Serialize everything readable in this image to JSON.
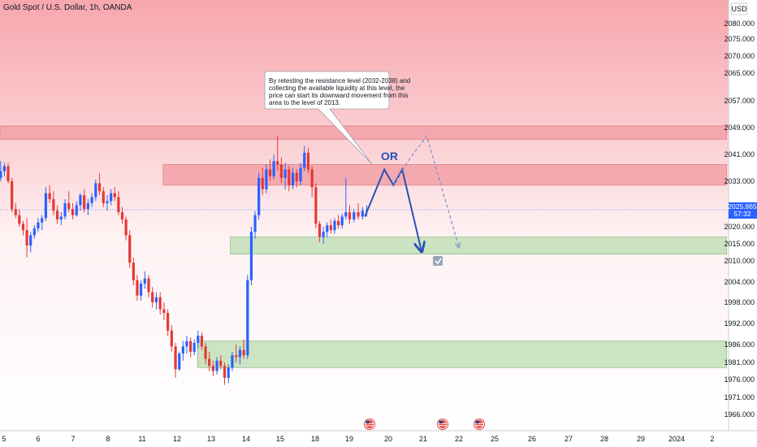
{
  "header": {
    "title": "Gold Spot / U.S. Dollar, 1h, OANDA",
    "currency": "USD"
  },
  "annotation": {
    "lines": [
      "By retesting the resistance level (2032-2038) and",
      "collecting the available liquidity at this level, the",
      "price can start its downward movement from this",
      "area to the level of 2013."
    ],
    "or_label": "OR"
  },
  "price_marker": {
    "price": "2025.865",
    "countdown": "57:32",
    "color": "#2962ff"
  },
  "colors": {
    "up": "#2962ff",
    "down": "#e53935",
    "resistance_zone": "#f4a1a8",
    "support_zone": "#c9e3c0",
    "scenario_line": "#2850b8",
    "upper_band": "#f6a3aa"
  },
  "icons": [
    "us-flag-icon",
    "us-flag-icon",
    "us-flag-icon",
    "checkmark-icon"
  ],
  "chart_data": {
    "type": "candlestick",
    "title": "Gold Spot / U.S. Dollar, 1h, OANDA",
    "ylim": [
      1964,
      2088
    ],
    "y_ticks": [
      2080,
      2075,
      2070,
      2065,
      2057,
      2049,
      2041,
      2033,
      2020,
      2015,
      2010,
      2004,
      1998,
      1992,
      1986,
      1981,
      1976,
      1971,
      1966
    ],
    "y_tick_labels": [
      "2080.000",
      "2075.000",
      "2070.000",
      "2065.000",
      "2057.000",
      "2049.000",
      "2041.000",
      "2033.000",
      "2020.000",
      "2015.000",
      "2010.000",
      "2004.000",
      "1998.000",
      "1992.000",
      "1986.000",
      "1981.000",
      "1976.000",
      "1971.000",
      "1966.000"
    ],
    "x_ticks": [
      {
        "label": "5",
        "x": 0
      },
      {
        "label": "6",
        "x": 1
      },
      {
        "label": "7",
        "x": 2
      },
      {
        "label": "8",
        "x": 3
      },
      {
        "label": "11",
        "x": 4
      },
      {
        "label": "12",
        "x": 5
      },
      {
        "label": "13",
        "x": 6
      },
      {
        "label": "14",
        "x": 7
      },
      {
        "label": "15",
        "x": 8
      },
      {
        "label": "18",
        "x": 9
      },
      {
        "label": "19",
        "x": 10
      },
      {
        "label": "20",
        "x": 11
      },
      {
        "label": "21",
        "x": 12
      },
      {
        "label": "22",
        "x": 13
      },
      {
        "label": "25",
        "x": 14
      },
      {
        "label": "26",
        "x": 15
      },
      {
        "label": "27",
        "x": 16
      },
      {
        "label": "28",
        "x": 17
      },
      {
        "label": "29",
        "x": 18
      },
      {
        "label": "2024",
        "x": 19
      },
      {
        "label": "2",
        "x": 20
      }
    ],
    "last_price": 2025.865,
    "zones": [
      {
        "kind": "resistance",
        "low": 2045.5,
        "high": 2049.5,
        "x_from": -0.1,
        "x_to": 20.4
      },
      {
        "kind": "resistance",
        "low": 2032,
        "high": 2038,
        "x_from": 4.6,
        "x_to": 20.4
      },
      {
        "kind": "support",
        "low": 2012,
        "high": 2017,
        "x_from": 6.55,
        "x_to": 20.4
      },
      {
        "kind": "support",
        "low": 1979.5,
        "high": 1987,
        "x_from": 5.6,
        "x_to": 20.4
      }
    ],
    "scenario_primary": [
      {
        "x": 10.4,
        "y": 2023.5
      },
      {
        "x": 10.9,
        "y": 2036.5
      },
      {
        "x": 11.15,
        "y": 2032
      },
      {
        "x": 11.4,
        "y": 2036.5
      },
      {
        "x": 11.95,
        "y": 2013
      }
    ],
    "scenario_alternative": [
      {
        "x": 11.15,
        "y": 2032
      },
      {
        "x": 11.6,
        "y": 2039.5
      },
      {
        "x": 12.1,
        "y": 2046.5
      },
      {
        "x": 13.0,
        "y": 2014
      }
    ],
    "candles_ohlc": [
      [
        2034.0,
        2039.0,
        2033.0,
        2036.0
      ],
      [
        2036.0,
        2038.5,
        2034.5,
        2037.5
      ],
      [
        2037.5,
        2038.5,
        2032.5,
        2033.0
      ],
      [
        2033.0,
        2034.0,
        2025.0,
        2026.0
      ],
      [
        2026.0,
        2027.5,
        2023.0,
        2024.0
      ],
      [
        2024.0,
        2026.0,
        2020.0,
        2021.0
      ],
      [
        2021.0,
        2022.0,
        2017.5,
        2019.0
      ],
      [
        2019.0,
        2023.0,
        2011.0,
        2014.5
      ],
      [
        2014.5,
        2018.5,
        2012.5,
        2017.5
      ],
      [
        2017.5,
        2020.5,
        2016.5,
        2019.5
      ],
      [
        2019.5,
        2023.0,
        2018.5,
        2021.5
      ],
      [
        2021.5,
        2024.0,
        2019.0,
        2023.0
      ],
      [
        2023.0,
        2031.5,
        2022.0,
        2030.0
      ],
      [
        2030.0,
        2032.0,
        2027.5,
        2028.5
      ],
      [
        2028.5,
        2030.5,
        2024.0,
        2025.5
      ],
      [
        2025.5,
        2027.0,
        2021.0,
        2022.5
      ],
      [
        2022.5,
        2025.0,
        2020.5,
        2023.5
      ],
      [
        2023.5,
        2028.5,
        2022.5,
        2027.5
      ],
      [
        2027.5,
        2030.5,
        2025.0,
        2026.0
      ],
      [
        2026.0,
        2027.5,
        2022.5,
        2024.0
      ],
      [
        2024.0,
        2028.0,
        2023.5,
        2027.0
      ],
      [
        2027.0,
        2030.0,
        2025.5,
        2029.5
      ],
      [
        2029.5,
        2031.0,
        2025.0,
        2026.0
      ],
      [
        2026.0,
        2028.5,
        2024.0,
        2027.5
      ],
      [
        2027.5,
        2030.0,
        2026.5,
        2029.0
      ],
      [
        2029.0,
        2033.5,
        2028.0,
        2032.5
      ],
      [
        2032.5,
        2035.5,
        2029.5,
        2030.5
      ],
      [
        2030.5,
        2031.5,
        2026.5,
        2027.5
      ],
      [
        2027.5,
        2029.5,
        2025.5,
        2028.0
      ],
      [
        2028.0,
        2031.0,
        2027.0,
        2030.0
      ],
      [
        2030.0,
        2031.5,
        2028.0,
        2029.0
      ],
      [
        2029.0,
        2030.5,
        2024.0,
        2025.0
      ],
      [
        2025.0,
        2026.5,
        2021.0,
        2022.5
      ],
      [
        2022.5,
        2023.5,
        2016.0,
        2017.5
      ],
      [
        2017.5,
        2019.0,
        2008.0,
        2009.5
      ],
      [
        2009.5,
        2011.0,
        2003.0,
        2004.5
      ],
      [
        2004.5,
        2006.0,
        1998.5,
        2000.0
      ],
      [
        2000.0,
        2004.5,
        1998.5,
        2003.5
      ],
      [
        2003.5,
        2007.0,
        2002.0,
        2005.0
      ],
      [
        2005.0,
        2006.0,
        1999.5,
        2001.0
      ],
      [
        2001.0,
        2002.5,
        1996.5,
        1998.0
      ],
      [
        1998.0,
        2001.0,
        1996.0,
        1999.5
      ],
      [
        1999.5,
        2001.0,
        1994.5,
        1996.0
      ],
      [
        1996.0,
        1998.0,
        1993.0,
        1995.0
      ],
      [
        1995.0,
        1996.0,
        1988.5,
        1990.0
      ],
      [
        1990.0,
        1991.5,
        1984.0,
        1985.5
      ],
      [
        1985.5,
        1986.5,
        1976.5,
        1979.0
      ],
      [
        1979.0,
        1984.0,
        1978.5,
        1983.5
      ],
      [
        1983.5,
        1987.0,
        1981.5,
        1985.5
      ],
      [
        1985.5,
        1988.5,
        1983.5,
        1987.0
      ],
      [
        1987.0,
        1988.0,
        1982.5,
        1984.0
      ],
      [
        1984.0,
        1987.5,
        1983.0,
        1986.5
      ],
      [
        1986.5,
        1990.0,
        1985.0,
        1988.5
      ],
      [
        1988.5,
        1989.5,
        1984.5,
        1985.5
      ],
      [
        1985.5,
        1986.5,
        1980.5,
        1982.0
      ],
      [
        1982.0,
        1984.0,
        1978.5,
        1980.0
      ],
      [
        1980.0,
        1981.5,
        1977.0,
        1978.5
      ],
      [
        1978.5,
        1982.5,
        1977.5,
        1981.5
      ],
      [
        1981.5,
        1983.0,
        1979.0,
        1980.0
      ],
      [
        1980.0,
        1981.0,
        1974.5,
        1976.5
      ],
      [
        1976.5,
        1980.5,
        1975.0,
        1979.5
      ],
      [
        1979.5,
        1984.0,
        1978.5,
        1983.0
      ],
      [
        1983.0,
        1986.0,
        1981.0,
        1982.5
      ],
      [
        1982.5,
        1985.5,
        1980.5,
        1984.5
      ],
      [
        1984.5,
        1987.5,
        1982.0,
        1983.0
      ],
      [
        1983.0,
        2006.0,
        1982.0,
        2004.5
      ],
      [
        2004.5,
        2020.0,
        2003.0,
        2018.5
      ],
      [
        2018.5,
        2025.5,
        2016.5,
        2024.0
      ],
      [
        2024.0,
        2035.5,
        2022.5,
        2034.0
      ],
      [
        2034.0,
        2037.0,
        2029.5,
        2031.0
      ],
      [
        2031.0,
        2038.0,
        2030.0,
        2036.5
      ],
      [
        2036.5,
        2039.5,
        2033.0,
        2034.5
      ],
      [
        2034.5,
        2041.0,
        2033.5,
        2039.0
      ],
      [
        2039.0,
        2046.5,
        2036.0,
        2038.0
      ],
      [
        2038.0,
        2040.0,
        2032.5,
        2034.0
      ],
      [
        2034.0,
        2038.5,
        2031.0,
        2036.5
      ],
      [
        2036.5,
        2037.5,
        2030.5,
        2032.0
      ],
      [
        2032.0,
        2037.0,
        2031.0,
        2035.5
      ],
      [
        2035.5,
        2036.5,
        2031.5,
        2033.0
      ],
      [
        2033.0,
        2038.5,
        2032.0,
        2037.0
      ],
      [
        2037.0,
        2043.5,
        2036.0,
        2041.5
      ],
      [
        2041.5,
        2043.0,
        2035.5,
        2036.5
      ],
      [
        2036.5,
        2037.5,
        2029.0,
        2031.5
      ],
      [
        2031.5,
        2032.5,
        2019.5,
        2021.0
      ],
      [
        2021.0,
        2022.0,
        2015.5,
        2017.0
      ],
      [
        2017.0,
        2020.0,
        2015.0,
        2018.5
      ],
      [
        2018.5,
        2021.5,
        2017.0,
        2020.5
      ],
      [
        2020.5,
        2022.5,
        2018.0,
        2019.0
      ],
      [
        2019.0,
        2023.0,
        2018.0,
        2022.0
      ],
      [
        2022.0,
        2024.0,
        2019.5,
        2020.5
      ],
      [
        2020.5,
        2024.5,
        2019.5,
        2023.5
      ],
      [
        2023.5,
        2034.0,
        2022.5,
        2025.0
      ],
      [
        2025.0,
        2027.0,
        2021.0,
        2022.5
      ],
      [
        2022.5,
        2026.0,
        2021.5,
        2025.0
      ],
      [
        2025.0,
        2027.5,
        2022.5,
        2023.5
      ],
      [
        2023.5,
        2026.5,
        2022.5,
        2025.5
      ],
      [
        2025.5,
        2027.0,
        2023.5,
        2025.9
      ]
    ]
  }
}
